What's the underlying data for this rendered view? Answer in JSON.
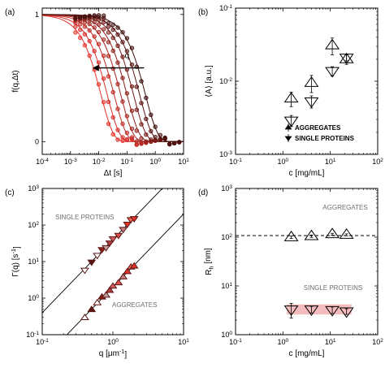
{
  "chart_data": [
    {
      "panel_label": "(a)",
      "type": "line",
      "title": "",
      "xlabel": "Δt [s]",
      "ylabel": "f(q,Δt)",
      "xscale": "log",
      "xlim": [
        0.0001,
        10
      ],
      "ylim": [
        -0.1,
        1.05
      ],
      "xticks": [
        {
          "value": 0.0001,
          "label": "10^-4"
        },
        {
          "value": 0.001,
          "label": "10^-3"
        },
        {
          "value": 0.01,
          "label": "10^-2"
        },
        {
          "value": 0.1,
          "label": "10^-1"
        },
        {
          "value": 1,
          "label": "10^0"
        },
        {
          "value": 10,
          "label": "10^1"
        }
      ],
      "yticks": [
        {
          "value": 0,
          "label": "0"
        },
        {
          "value": 1,
          "label": "1"
        }
      ],
      "grid": false,
      "arrow_label": "q",
      "series": [
        {
          "tau": 0.012,
          "color": "#e8332c"
        },
        {
          "tau": 0.02,
          "color": "#d62d28"
        },
        {
          "tau": 0.035,
          "color": "#c12a24"
        },
        {
          "tau": 0.06,
          "color": "#a8251f"
        },
        {
          "tau": 0.1,
          "color": "#8e1f1a"
        },
        {
          "tau": 0.17,
          "color": "#741a16"
        },
        {
          "tau": 0.28,
          "color": "#5a1412"
        },
        {
          "tau": 0.45,
          "color": "#3e0e0c"
        }
      ],
      "x_points": [
        0.0015,
        0.0022,
        0.0032,
        0.0047,
        0.007,
        0.01,
        0.015,
        0.022,
        0.032,
        0.047,
        0.07,
        0.1,
        0.15,
        0.22,
        0.32,
        0.47,
        0.7,
        1.0,
        1.5,
        2.2,
        3.2,
        4.7,
        7.0
      ]
    },
    {
      "panel_label": "(b)",
      "type": "scatter",
      "title": "",
      "xlabel": "c [mg/mL]",
      "ylabel": "⟨A⟩ [a.u.]",
      "xscale": "log",
      "yscale": "log",
      "xlim": [
        0.1,
        100
      ],
      "ylim": [
        0.001,
        0.1
      ],
      "xticks": [
        {
          "value": 0.1,
          "label": "10^-1"
        },
        {
          "value": 1,
          "label": "10^0"
        },
        {
          "value": 10,
          "label": "10^1"
        },
        {
          "value": 100,
          "label": "10^2"
        }
      ],
      "yticks": [
        {
          "value": 0.001,
          "label": "10^-3"
        },
        {
          "value": 0.01,
          "label": "10^-2"
        },
        {
          "value": 0.1,
          "label": "10^-1"
        }
      ],
      "grid": false,
      "legend": {
        "position": "bottom-right",
        "entries": [
          "AGGREGATES",
          "SINGLE PROTEINS"
        ]
      },
      "series": [
        {
          "name": "AGGREGATES",
          "marker": "triangle-up",
          "x": [
            1.5,
            4,
            11,
            22
          ],
          "y": [
            0.0058,
            0.0095,
            0.031,
            0.02
          ],
          "err": [
            0.0013,
            0.0025,
            0.008,
            0.003
          ]
        },
        {
          "name": "SINGLE PROTEINS",
          "marker": "triangle-down",
          "x": [
            1.5,
            4,
            11,
            22
          ],
          "y": [
            0.0029,
            0.0053,
            0.0138,
            0.021
          ],
          "err": [
            0.0005,
            0.001,
            0.002,
            0.002
          ]
        }
      ]
    },
    {
      "panel_label": "(c)",
      "type": "scatter",
      "title": "",
      "xlabel": "q [μm^-1]",
      "ylabel": "Γ(q) [s^-1]",
      "xscale": "log",
      "yscale": "log",
      "xlim": [
        0.1,
        10
      ],
      "ylim": [
        0.1,
        1000
      ],
      "xticks": [
        {
          "value": 0.1,
          "label": "10^-1"
        },
        {
          "value": 1,
          "label": "10^0"
        },
        {
          "value": 10,
          "label": "10^1"
        }
      ],
      "yticks": [
        {
          "value": 0.1,
          "label": "10^-1"
        },
        {
          "value": 1,
          "label": "10^0"
        },
        {
          "value": 10,
          "label": "10^1"
        },
        {
          "value": 100,
          "label": "10^2"
        },
        {
          "value": 1000,
          "label": "10^3"
        }
      ],
      "grid": false,
      "annotations": [
        "SINGLE PROTEINS",
        "AGGREGATES"
      ],
      "fit_lines": [
        {
          "coef": 40,
          "slope": 2
        },
        {
          "coef": 2.0,
          "slope": 2
        }
      ],
      "q_values": [
        0.4,
        0.5,
        0.6,
        0.7,
        0.8,
        0.9,
        1.0,
        1.2,
        1.4,
        1.6,
        1.8,
        2.0
      ],
      "series": [
        {
          "marker": "triangle-down",
          "coef": 40,
          "colors": [
            "#ffffff",
            "#5a1412",
            "#ffffff",
            "#8e1f1a",
            "#c0a0a0",
            "#b04040",
            "#d06060",
            "#e05050",
            "#c08080",
            "#e8332c",
            "#f06a5a",
            "#e8332c"
          ]
        },
        {
          "marker": "triangle-up",
          "coef": 2.0,
          "colors": [
            "#ffffff",
            "#5a1412",
            "#ffffff",
            "#8e1f1a",
            "#c0a0a0",
            "#b04040",
            "#d06060",
            "#e05050",
            "#c08080",
            "#e8332c",
            "#f06a5a",
            "#e8332c"
          ]
        }
      ]
    },
    {
      "panel_label": "(d)",
      "type": "scatter",
      "title": "",
      "xlabel": "c [mg/mL]",
      "ylabel": "R_h [nm]",
      "xscale": "log",
      "yscale": "log",
      "xlim": [
        0.1,
        100
      ],
      "ylim": [
        1,
        1000
      ],
      "xticks": [
        {
          "value": 0.1,
          "label": "10^-1"
        },
        {
          "value": 1,
          "label": "10^0"
        },
        {
          "value": 10,
          "label": "10^1"
        },
        {
          "value": 100,
          "label": "10^2"
        }
      ],
      "yticks": [
        {
          "value": 1,
          "label": "10^0"
        },
        {
          "value": 10,
          "label": "10^1"
        },
        {
          "value": 100,
          "label": "10^2"
        },
        {
          "value": 1000,
          "label": "10^3"
        }
      ],
      "grid": false,
      "annotations": [
        "AGGREGATES",
        "SINGLE PROTEINS"
      ],
      "reference_line": {
        "y": 108
      },
      "band": {
        "y_low": 2.6,
        "y_high": 4.2,
        "color": "#f0a0a0"
      },
      "series": [
        {
          "name": "AGGREGATES",
          "marker": "triangle-up",
          "x": [
            1.5,
            4,
            11,
            22
          ],
          "y": [
            100,
            105,
            115,
            112
          ],
          "err": [
            6,
            6,
            5,
            5
          ]
        },
        {
          "name": "SINGLE PROTEINS",
          "marker": "triangle-down",
          "x": [
            1.5,
            4,
            11,
            22
          ],
          "y": [
            3.3,
            3.3,
            3.2,
            3.0
          ],
          "err": [
            1.1,
            0.5,
            0.5,
            0.4
          ]
        }
      ]
    }
  ]
}
